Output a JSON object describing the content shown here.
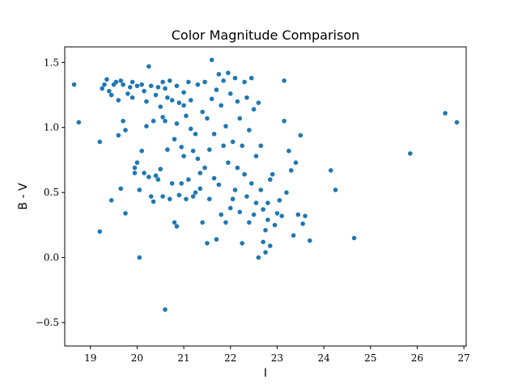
{
  "chart_data": {
    "type": "scatter",
    "title": "Color Magnitude Comparison",
    "xlabel": "I",
    "ylabel": "B - V",
    "xlim": [
      18.45,
      27.05
    ],
    "ylim": [
      -0.68,
      1.62
    ],
    "x_ticks": [
      19,
      20,
      21,
      22,
      23,
      24,
      25,
      26,
      27
    ],
    "x_tick_labels": [
      "19",
      "20",
      "21",
      "22",
      "23",
      "24",
      "25",
      "26",
      "27"
    ],
    "y_ticks": [
      -0.5,
      0.0,
      0.5,
      1.0,
      1.5
    ],
    "y_tick_labels": [
      "−0.5",
      "0.0",
      "0.5",
      "1.0",
      "1.5"
    ],
    "grid": false,
    "colors": {
      "point": "#1f77b4"
    },
    "points": [
      [
        18.65,
        1.33
      ],
      [
        18.75,
        1.04
      ],
      [
        19.2,
        0.89
      ],
      [
        19.2,
        0.2
      ],
      [
        19.25,
        1.3
      ],
      [
        19.3,
        1.33
      ],
      [
        19.35,
        1.37
      ],
      [
        19.4,
        1.28
      ],
      [
        19.45,
        0.44
      ],
      [
        19.45,
        1.25
      ],
      [
        19.5,
        1.33
      ],
      [
        19.55,
        1.35
      ],
      [
        19.6,
        0.94
      ],
      [
        19.6,
        1.21
      ],
      [
        19.65,
        1.36
      ],
      [
        19.65,
        0.53
      ],
      [
        19.7,
        1.33
      ],
      [
        19.7,
        1.05
      ],
      [
        19.75,
        0.98
      ],
      [
        19.75,
        0.34
      ],
      [
        19.8,
        1.26
      ],
      [
        19.85,
        1.31
      ],
      [
        19.9,
        1.35
      ],
      [
        19.9,
        1.23
      ],
      [
        19.95,
        0.65
      ],
      [
        19.95,
        0.69
      ],
      [
        20.0,
        0.73
      ],
      [
        20.0,
        1.32
      ],
      [
        20.05,
        0.52
      ],
      [
        20.05,
        0.0
      ],
      [
        20.1,
        1.33
      ],
      [
        20.1,
        0.82
      ],
      [
        20.15,
        1.28
      ],
      [
        20.15,
        0.65
      ],
      [
        20.2,
        1.2
      ],
      [
        20.2,
        1.01
      ],
      [
        20.25,
        0.62
      ],
      [
        20.25,
        1.47
      ],
      [
        20.3,
        1.32
      ],
      [
        20.3,
        0.47
      ],
      [
        20.35,
        1.05
      ],
      [
        20.35,
        0.43
      ],
      [
        20.4,
        1.25
      ],
      [
        20.4,
        0.63
      ],
      [
        20.45,
        1.31
      ],
      [
        20.45,
        0.6
      ],
      [
        20.5,
        0.68
      ],
      [
        20.5,
        1.16
      ],
      [
        20.55,
        1.35
      ],
      [
        20.55,
        1.08
      ],
      [
        20.55,
        0.47
      ],
      [
        20.6,
        -0.4
      ],
      [
        20.6,
        1.3
      ],
      [
        20.6,
        1.05
      ],
      [
        20.65,
        0.83
      ],
      [
        20.65,
        1.23
      ],
      [
        20.7,
        0.45
      ],
      [
        20.7,
        1.36
      ],
      [
        20.75,
        0.57
      ],
      [
        20.75,
        1.21
      ],
      [
        20.8,
        0.91
      ],
      [
        20.8,
        0.27
      ],
      [
        20.85,
        0.24
      ],
      [
        20.85,
        1.32
      ],
      [
        20.85,
        1.03
      ],
      [
        20.9,
        1.19
      ],
      [
        20.9,
        0.48
      ],
      [
        20.95,
        0.85
      ],
      [
        20.95,
        0.57
      ],
      [
        21.0,
        1.27
      ],
      [
        21.0,
        1.17
      ],
      [
        21.0,
        0.78
      ],
      [
        21.05,
        1.09
      ],
      [
        21.05,
        0.45
      ],
      [
        21.1,
        1.35
      ],
      [
        21.1,
        0.6
      ],
      [
        21.15,
        0.99
      ],
      [
        21.15,
        1.21
      ],
      [
        21.2,
        0.47
      ],
      [
        21.2,
        0.82
      ],
      [
        21.25,
        0.95
      ],
      [
        21.25,
        0.5
      ],
      [
        21.3,
        0.76
      ],
      [
        21.3,
        1.33
      ],
      [
        21.35,
        0.65
      ],
      [
        21.35,
        0.53
      ],
      [
        21.4,
        1.12
      ],
      [
        21.4,
        0.27
      ],
      [
        21.45,
        1.35
      ],
      [
        21.45,
        0.69
      ],
      [
        21.5,
        0.11
      ],
      [
        21.5,
        1.07
      ],
      [
        21.55,
        0.83
      ],
      [
        21.55,
        0.45
      ],
      [
        21.6,
        1.52
      ],
      [
        21.6,
        1.22
      ],
      [
        21.65,
        0.61
      ],
      [
        21.65,
        0.95
      ],
      [
        21.7,
        1.29
      ],
      [
        21.7,
        0.14
      ],
      [
        21.75,
        1.41
      ],
      [
        21.75,
        0.56
      ],
      [
        21.8,
        1.17
      ],
      [
        21.8,
        0.33
      ],
      [
        21.85,
        0.86
      ],
      [
        21.85,
        1.36
      ],
      [
        21.9,
        0.27
      ],
      [
        21.9,
        1.01
      ],
      [
        21.95,
        0.73
      ],
      [
        21.95,
        1.42
      ],
      [
        22.0,
        0.38
      ],
      [
        22.0,
        1.26
      ],
      [
        22.05,
        0.45
      ],
      [
        22.05,
        0.89
      ],
      [
        22.1,
        1.38
      ],
      [
        22.1,
        0.52
      ],
      [
        22.15,
        0.69
      ],
      [
        22.15,
        1.2
      ],
      [
        22.2,
        0.35
      ],
      [
        22.2,
        1.07
      ],
      [
        22.25,
        0.11
      ],
      [
        22.25,
        0.86
      ],
      [
        22.3,
        0.64
      ],
      [
        22.3,
        1.35
      ],
      [
        22.35,
        0.47
      ],
      [
        22.35,
        1.23
      ],
      [
        22.4,
        0.27
      ],
      [
        22.4,
        0.98
      ],
      [
        22.45,
        0.57
      ],
      [
        22.45,
        1.38
      ],
      [
        22.5,
        0.33
      ],
      [
        22.5,
        1.14
      ],
      [
        22.55,
        0.42
      ],
      [
        22.55,
        0.78
      ],
      [
        22.6,
        0.0
      ],
      [
        22.6,
        1.19
      ],
      [
        22.65,
        0.52
      ],
      [
        22.65,
        0.86
      ],
      [
        22.7,
        0.37
      ],
      [
        22.7,
        0.12
      ],
      [
        22.75,
        0.04
      ],
      [
        22.75,
        0.21
      ],
      [
        22.8,
        0.29
      ],
      [
        22.8,
        0.42
      ],
      [
        22.85,
        0.6
      ],
      [
        22.85,
        0.09
      ],
      [
        22.9,
        0.64
      ],
      [
        22.95,
        0.25
      ],
      [
        23.0,
        0.34
      ],
      [
        23.05,
        0.44
      ],
      [
        23.1,
        0.32
      ],
      [
        23.15,
        1.05
      ],
      [
        23.15,
        1.36
      ],
      [
        23.2,
        0.5
      ],
      [
        23.25,
        0.82
      ],
      [
        23.3,
        0.67
      ],
      [
        23.35,
        0.17
      ],
      [
        23.4,
        0.73
      ],
      [
        23.45,
        0.33
      ],
      [
        23.5,
        0.94
      ],
      [
        23.55,
        0.26
      ],
      [
        23.6,
        0.32
      ],
      [
        23.7,
        0.13
      ],
      [
        24.15,
        0.67
      ],
      [
        24.25,
        0.52
      ],
      [
        24.65,
        0.15
      ],
      [
        25.85,
        0.8
      ],
      [
        26.6,
        1.11
      ],
      [
        26.85,
        1.04
      ]
    ]
  }
}
